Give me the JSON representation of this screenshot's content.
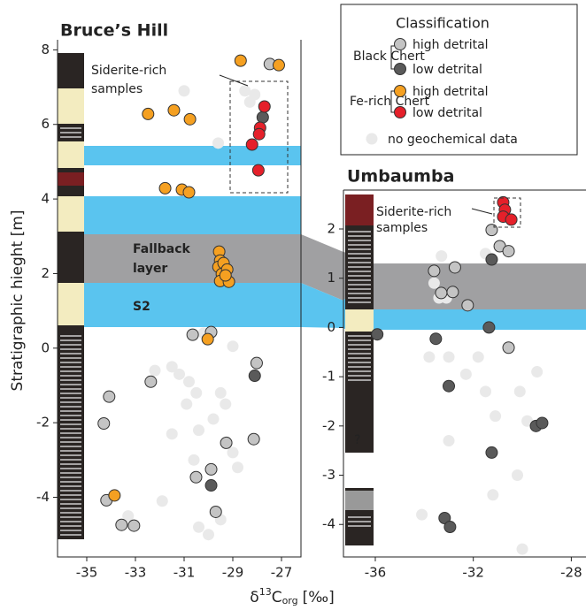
{
  "y_label": "Stratigraphic hieght [m]",
  "x_label": {
    "delta": "δ",
    "sup": "13",
    "base": "C",
    "sub": "org",
    "unit": "[‰]"
  },
  "legend": {
    "title": "Classification",
    "groups": [
      {
        "label": "Black Chert",
        "entries": [
          "high detrital",
          "low detrital"
        ],
        "colors": [
          "#c4c4c4",
          "#5a5a5a"
        ]
      },
      {
        "label": "Fe-rich Chert",
        "entries": [
          "high detrital",
          "low detrital"
        ],
        "colors": [
          "#f5a021",
          "#e5202a"
        ]
      }
    ],
    "no_data": "no geochemical data",
    "no_data_color": "#e9e9e9"
  },
  "chart_data": [
    {
      "type": "scatter",
      "title": "Bruce’s Hill",
      "annotations": {
        "siderite": [
          "Siderite-rich",
          "samples"
        ],
        "fallback": [
          "Fallback",
          "layer"
        ],
        "s2": "S2"
      },
      "xlim": [
        -36.2,
        -26.2
      ],
      "ylim": [
        -5.6,
        8.27
      ],
      "xticks": [
        -35,
        -33,
        -31,
        -29,
        -27
      ],
      "yticks": [
        -4,
        -2,
        0,
        2,
        4,
        6,
        8
      ],
      "series": [
        {
          "color": "#e9e9e9",
          "x": [
            -31,
            -28.5,
            -28.1,
            -28.3,
            -29.6,
            -30.2,
            -29.0,
            -31.5,
            -31.2,
            -32.2,
            -30.8,
            -30.5,
            -30.9,
            -29.5,
            -29.3,
            -29.8,
            -31.5,
            -30.4,
            -29.0,
            -30.6,
            -28.8,
            -31.9,
            -33.3,
            -30.0,
            -29.5,
            -30.4
          ],
          "y": [
            6.9,
            6.9,
            6.8,
            6.6,
            5.5,
            0.4,
            0.05,
            -0.5,
            -0.7,
            -0.6,
            -0.9,
            -1.2,
            -1.5,
            -1.2,
            -1.5,
            -1.9,
            -2.3,
            -2.2,
            -2.8,
            -3.0,
            -3.2,
            -4.1,
            -4.5,
            -5.0,
            -4.6,
            -4.8
          ]
        },
        {
          "color": "#c4c4c4",
          "x": [
            -27.48,
            -29.89,
            -30.65,
            -32.37,
            -28.02,
            -34.08,
            -34.3,
            -29.27,
            -28.14,
            -29.89,
            -30.51,
            -29.7,
            -34.19,
            -33.57,
            -33.06
          ],
          "y": [
            7.62,
            0.43,
            0.36,
            -0.9,
            -0.4,
            -1.3,
            -2.02,
            -2.54,
            -2.44,
            -3.25,
            -3.46,
            -4.39,
            -4.08,
            -4.74,
            -4.76
          ]
        },
        {
          "color": "#5a5a5a",
          "x": [
            -27.77,
            -28.1,
            -29.89
          ],
          "y": [
            6.19,
            -0.74,
            -3.68
          ]
        },
        {
          "color": "#f5a021",
          "x": [
            -28.68,
            -27.11,
            -32.48,
            -31.42,
            -30.76,
            -31.78,
            -31.09,
            -30.8,
            -29.56,
            -29.52,
            -29.59,
            -29.38,
            -29.45,
            -29.23,
            -29.52,
            -29.16,
            -29.3,
            -30.03,
            -33.86
          ],
          "y": [
            7.71,
            7.59,
            6.28,
            6.38,
            6.14,
            4.29,
            4.25,
            4.18,
            2.59,
            2.35,
            2.18,
            2.28,
            1.99,
            2.11,
            1.8,
            1.78,
            1.95,
            0.24,
            -3.95
          ]
        },
        {
          "color": "#e5202a",
          "x": [
            -27.7,
            -27.88,
            -27.92,
            -28.21,
            -27.95
          ],
          "y": [
            6.48,
            5.91,
            5.74,
            5.46,
            4.77
          ]
        }
      ]
    },
    {
      "type": "scatter",
      "title": "Umbaumba",
      "annotations": {
        "siderite": [
          "Siderite-rich",
          "samples"
        ],
        "unknown": "?"
      },
      "xlim": [
        -37.3,
        -27.4
      ],
      "ylim": [
        -4.66,
        2.79
      ],
      "xticks": [
        -36,
        -32,
        -28
      ],
      "yticks": [
        -4,
        -3,
        -2,
        -1,
        0,
        1,
        2
      ],
      "series": [
        {
          "color": "#e9e9e9",
          "x": [
            -33.3,
            -33.6,
            -33.4,
            -33.1,
            -31.5,
            -33.0,
            -33.8,
            -31.8,
            -32.3,
            -29.4,
            -31.5,
            -30.1,
            -31.1,
            -29.8,
            -33.0,
            -30.2,
            -34.1,
            -30.0,
            -31.2
          ],
          "y": [
            1.45,
            0.9,
            0.6,
            0.6,
            1.5,
            -0.6,
            -0.6,
            -0.6,
            -0.95,
            -0.9,
            -1.3,
            -1.3,
            -1.8,
            -1.9,
            -2.3,
            -3.0,
            -3.8,
            -4.5,
            -3.4
          ]
        },
        {
          "color": "#c4c4c4",
          "x": [
            -31.25,
            -30.92,
            -30.56,
            -33.6,
            -32.84,
            -33.31,
            -32.23,
            -30.56,
            -32.75
          ],
          "y": [
            1.98,
            1.65,
            1.55,
            1.15,
            0.72,
            0.7,
            0.45,
            -0.41,
            1.22
          ]
        },
        {
          "color": "#5a5a5a",
          "x": [
            -31.25,
            -35.92,
            -33.53,
            -31.36,
            -33.0,
            -29.44,
            -29.19,
            -31.25,
            -33.17,
            -32.95
          ],
          "y": [
            1.38,
            -0.14,
            -0.23,
            0.0,
            -1.19,
            -2.0,
            -1.94,
            -2.54,
            -3.87,
            -4.05
          ]
        },
        {
          "color": "#e5202a",
          "x": [
            -30.78,
            -30.71,
            -30.78,
            -30.45
          ],
          "y": [
            2.54,
            2.39,
            2.25,
            2.19
          ]
        }
      ]
    }
  ]
}
